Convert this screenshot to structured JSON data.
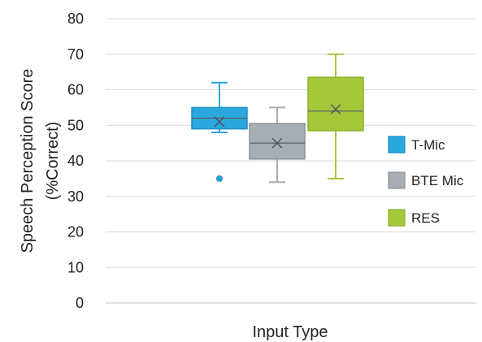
{
  "chart_data": {
    "type": "box",
    "xlabel": "Input Type",
    "ylabel": [
      "Speech Perception Score",
      "(%Correct)"
    ],
    "ylim": [
      0,
      80
    ],
    "yticks": [
      0,
      10,
      20,
      30,
      40,
      50,
      60,
      70,
      80
    ],
    "grid": true,
    "legend_position": "right",
    "series": [
      {
        "name": "T-Mic",
        "color": "#2aa7dc",
        "edge": "#1f8fc4",
        "whisker_low": 48,
        "q1": 49,
        "median": 52,
        "q3": 55,
        "whisker_high": 62,
        "mean": 51,
        "outliers": [
          35
        ]
      },
      {
        "name": "BTE Mic",
        "color": "#a6adb3",
        "edge": "#8a939a",
        "whisker_low": 34,
        "q1": 40.5,
        "median": 45,
        "q3": 50.5,
        "whisker_high": 55,
        "mean": 45,
        "outliers": []
      },
      {
        "name": "RES",
        "color": "#a3c93a",
        "edge": "#8cb024",
        "whisker_low": 35,
        "q1": 48.5,
        "median": 54,
        "q3": 63.5,
        "whisker_high": 70,
        "mean": 54.5,
        "outliers": []
      }
    ]
  }
}
